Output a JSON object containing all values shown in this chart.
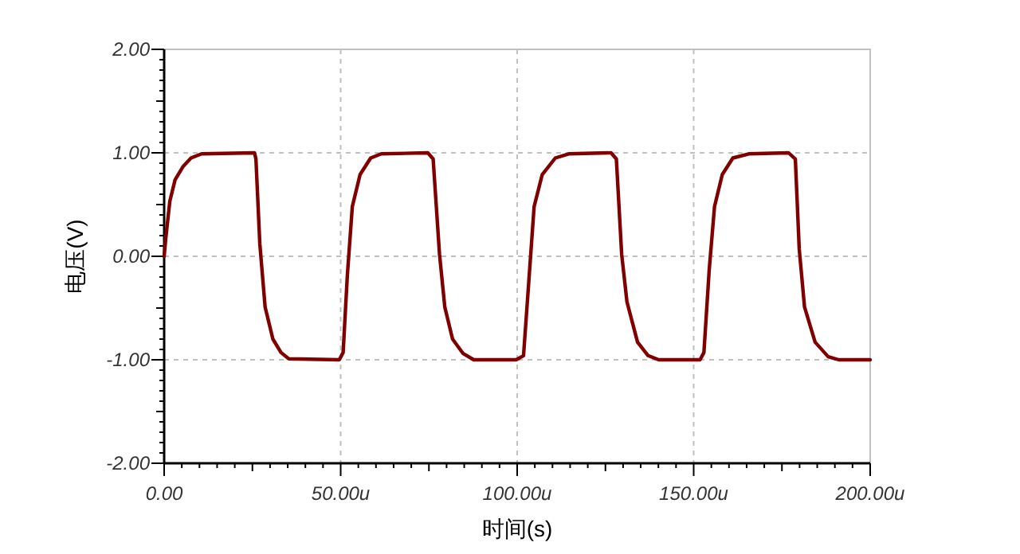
{
  "chart_data": {
    "type": "line",
    "xlabel": "时间(s)",
    "ylabel": "电压(V)",
    "xlim": [
      0,
      200
    ],
    "ylim": [
      -2,
      2
    ],
    "xticks": [
      {
        "value": 0,
        "label": "0.00"
      },
      {
        "value": 50,
        "label": "50.00u"
      },
      {
        "value": 100,
        "label": "100.00u"
      },
      {
        "value": 150,
        "label": "150.00u"
      },
      {
        "value": 200,
        "label": "200.00u"
      }
    ],
    "yticks": [
      {
        "value": -2,
        "label": "-2.00"
      },
      {
        "value": -1,
        "label": "-1.00"
      },
      {
        "value": 0,
        "label": "0.00"
      },
      {
        "value": 1,
        "label": "1.00"
      },
      {
        "value": 2,
        "label": "2.00"
      }
    ],
    "grid": true,
    "marker": "none",
    "line_style": "solid",
    "series": [
      {
        "color": "#800000",
        "x": [
          0,
          0.45,
          1.6,
          3.1,
          5.4,
          7.6,
          10.6,
          25.6,
          26,
          27.1,
          28.6,
          30.8,
          33.1,
          35.3,
          49.6,
          50.7,
          51.9,
          53.3,
          55.5,
          58.5,
          61.5,
          74.7,
          76.2,
          78,
          79.5,
          81.7,
          84.7,
          87.7,
          99.7,
          101.8,
          103.3,
          104.8,
          107.1,
          110.8,
          114.6,
          126.6,
          128.1,
          129.6,
          131.1,
          134.1,
          137.1,
          140.1,
          151.8,
          152.9,
          154.4,
          155.9,
          158.1,
          161.1,
          165.6,
          176.9,
          178.8,
          179.9,
          181.4,
          184.4,
          188.1,
          191.1,
          200
        ],
        "values": [
          0,
          0.17,
          0.53,
          0.74,
          0.87,
          0.95,
          0.99,
          1,
          0.94,
          0.12,
          -0.49,
          -0.8,
          -0.93,
          -0.99,
          -1,
          -0.93,
          -0.18,
          0.48,
          0.79,
          0.95,
          0.99,
          1,
          0.94,
          0.02,
          -0.49,
          -0.8,
          -0.94,
          -1,
          -1,
          -0.96,
          -0.24,
          0.48,
          0.79,
          0.95,
          0.99,
          1,
          0.94,
          0.02,
          -0.44,
          -0.83,
          -0.96,
          -1,
          -1,
          -0.93,
          -0.13,
          0.48,
          0.79,
          0.95,
          0.99,
          1,
          0.94,
          0.07,
          -0.49,
          -0.83,
          -0.97,
          -1,
          -1
        ]
      }
    ]
  }
}
